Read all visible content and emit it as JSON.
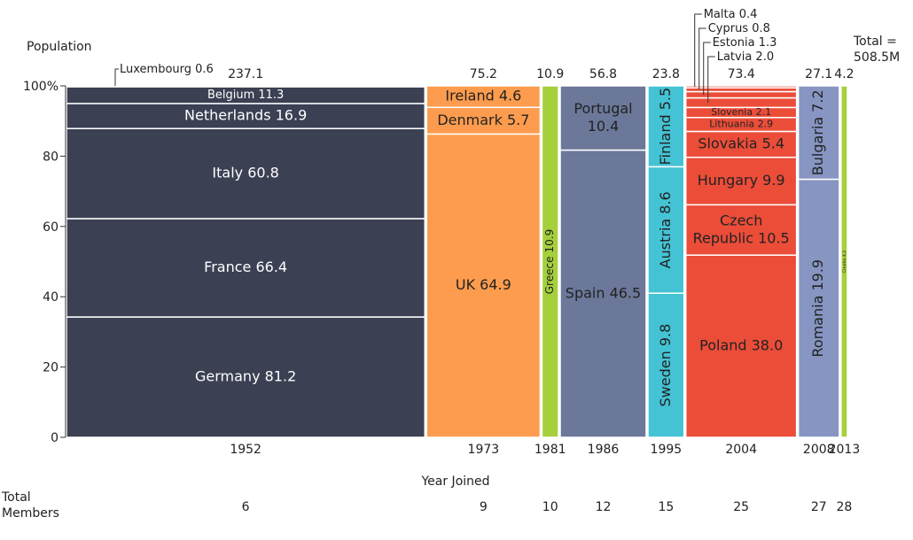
{
  "chart_data": {
    "type": "mosaic",
    "ylabel": "Population",
    "xlabel": "Year Joined",
    "total_label_line1": "Total =",
    "total_label_line2": "508.5M",
    "members_label_line1": "Total",
    "members_label_line2": "Members",
    "ylim": [
      0,
      100
    ],
    "yticks": [
      {
        "value": 0,
        "label": "0"
      },
      {
        "value": 20,
        "label": "20"
      },
      {
        "value": 40,
        "label": "40"
      },
      {
        "value": 60,
        "label": "60"
      },
      {
        "value": 80,
        "label": "80"
      },
      {
        "value": 100,
        "label": "100%"
      }
    ],
    "groups": [
      {
        "year": "1952",
        "total": "237.1",
        "members": "6",
        "color": "#3b4053",
        "label_color": "#ffffff",
        "countries": [
          {
            "name": "Germany",
            "value": 81.2,
            "label": "Germany 81.2"
          },
          {
            "name": "France",
            "value": 66.4,
            "label": "France  66.4"
          },
          {
            "name": "Italy",
            "value": 60.8,
            "label": "Italy 60.8"
          },
          {
            "name": "Netherlands",
            "value": 16.9,
            "label": "Netherlands 16.9"
          },
          {
            "name": "Belgium",
            "value": 11.3,
            "label": "Belgium 11.3"
          },
          {
            "name": "Luxembourg",
            "value": 0.6,
            "label": "Luxembourg 0.6"
          }
        ]
      },
      {
        "year": "1973",
        "total": "75.2",
        "members": "9",
        "color": "#fd9c4e",
        "label_color": "#222222",
        "countries": [
          {
            "name": "UK",
            "value": 64.9,
            "label": "UK 64.9"
          },
          {
            "name": "Denmark",
            "value": 5.7,
            "label": "Denmark 5.7"
          },
          {
            "name": "Ireland",
            "value": 4.6,
            "label": "Ireland 4.6"
          }
        ]
      },
      {
        "year": "1981",
        "total": "10.9",
        "members": "10",
        "color": "#a6cf3c",
        "label_color": "#222222",
        "countries": [
          {
            "name": "Greece",
            "value": 10.9,
            "label": "Greece 10.9"
          }
        ]
      },
      {
        "year": "1986",
        "total": "56.8",
        "members": "12",
        "color": "#6b7899",
        "label_color": "#222222",
        "countries": [
          {
            "name": "Spain",
            "value": 46.5,
            "label": "Spain 46.5"
          },
          {
            "name": "Portugal",
            "value": 10.4,
            "label": "Portugal|10.4"
          }
        ]
      },
      {
        "year": "1995",
        "total": "23.8",
        "members": "15",
        "color": "#44c3d4",
        "label_color": "#222222",
        "countries": [
          {
            "name": "Sweden",
            "value": 9.8,
            "label": "Sweden 9.8"
          },
          {
            "name": "Austria",
            "value": 8.6,
            "label": "Austria 8.6"
          },
          {
            "name": "Finland",
            "value": 5.5,
            "label": "Finland 5.5"
          }
        ]
      },
      {
        "year": "2004",
        "total": "73.4",
        "members": "25",
        "color": "#eb4d39",
        "label_color": "#222222",
        "countries": [
          {
            "name": "Poland",
            "value": 38.0,
            "label": "Poland 38.0"
          },
          {
            "name": "Czech Republic",
            "value": 10.5,
            "label": "Czech|Republic 10.5"
          },
          {
            "name": "Hungary",
            "value": 9.9,
            "label": "Hungary 9.9"
          },
          {
            "name": "Slovakia",
            "value": 5.4,
            "label": "Slovakia 5.4"
          },
          {
            "name": "Lithuania",
            "value": 2.9,
            "label": "Lithuania 2.9"
          },
          {
            "name": "Slovenia",
            "value": 2.1,
            "label": "Slovenia 2.1"
          },
          {
            "name": "Latvia",
            "value": 2.0,
            "label": "Latvia 2.0"
          },
          {
            "name": "Estonia",
            "value": 1.3,
            "label": "Estonia 1.3"
          },
          {
            "name": "Cyprus",
            "value": 0.8,
            "label": "Cyprus 0.8"
          },
          {
            "name": "Malta",
            "value": 0.4,
            "label": "Malta 0.4"
          }
        ]
      },
      {
        "year": "2008",
        "total": "27.1",
        "members": "27",
        "color": "#8795c2",
        "label_color": "#222222",
        "countries": [
          {
            "name": "Romania",
            "value": 19.9,
            "label": "Romania 19.9"
          },
          {
            "name": "Bulgaria",
            "value": 7.2,
            "label": "Bulgaria 7.2"
          }
        ]
      },
      {
        "year": "2013",
        "total": "4.2",
        "members": "28",
        "color": "#a6cf3c",
        "label_color": "#222222",
        "countries": [
          {
            "name": "Croatia",
            "value": 4.2,
            "label": "Croatia 4.2"
          }
        ]
      }
    ]
  }
}
